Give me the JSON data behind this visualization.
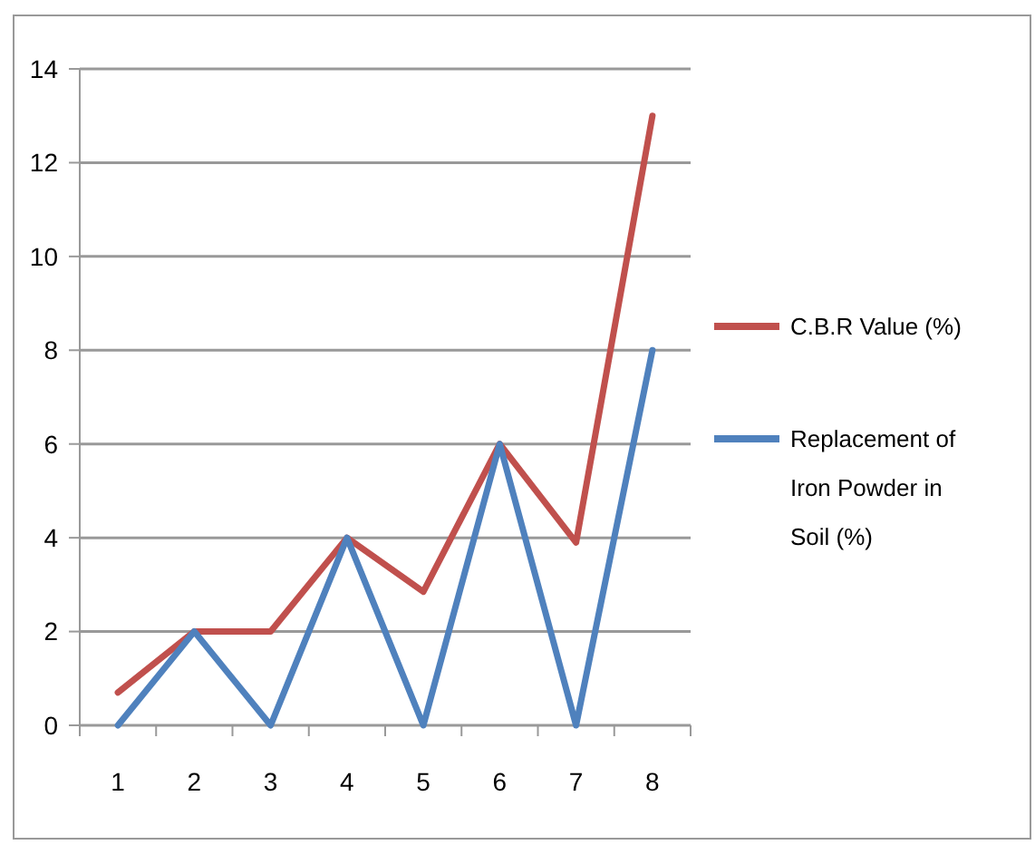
{
  "chart_data": {
    "type": "line",
    "categories": [
      "1",
      "2",
      "3",
      "4",
      "5",
      "6",
      "7",
      "8"
    ],
    "series": [
      {
        "name": "C.B.R Value (%)",
        "color": "#c0504d",
        "values": [
          0.7,
          2,
          2,
          4,
          2.85,
          6,
          3.9,
          13
        ]
      },
      {
        "name": "Replacement of Iron Powder in Soil (%)",
        "color": "#4f81bd",
        "values": [
          0,
          2,
          0,
          4,
          0,
          6,
          0,
          8
        ]
      }
    ],
    "ylim": [
      0,
      14
    ],
    "yticks": [
      0,
      2,
      4,
      6,
      8,
      10,
      12,
      14
    ],
    "grid": "y",
    "legend": "right",
    "marker": "none",
    "line_style": "solid"
  }
}
